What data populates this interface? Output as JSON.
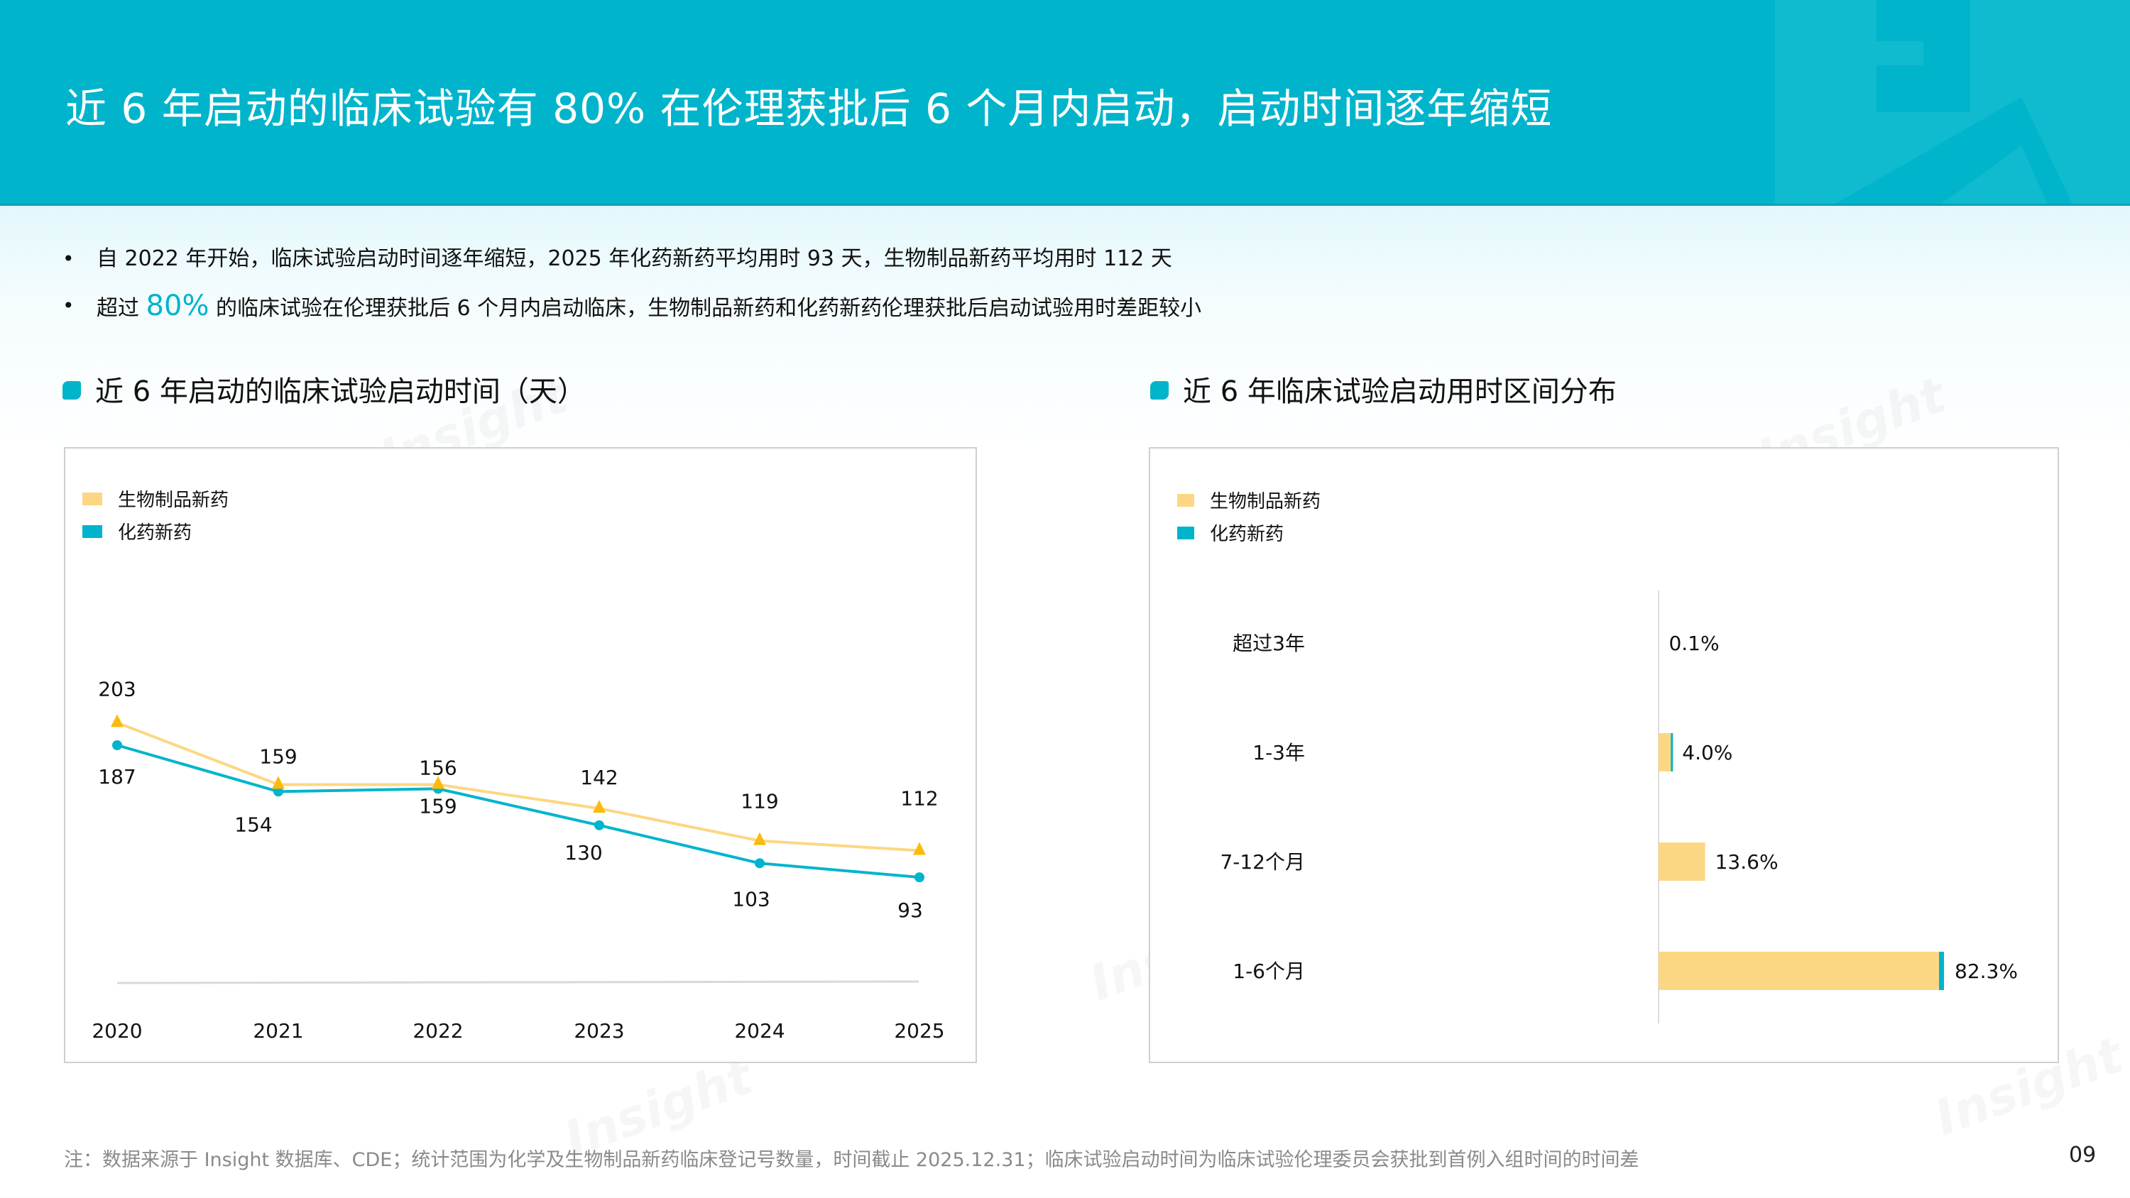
{
  "header": {
    "title": "近 6 年启动的临床试验有 80% 在伦理获批后 6 个月内启动，启动时间逐年缩短"
  },
  "bullets": [
    {
      "text": "自 2022 年开始，临床试验启动时间逐年缩短，2025 年化药新药平均用时 93 天，生物制品新药平均用时 112 天"
    },
    {
      "prefix": "超过 ",
      "highlight": "80%",
      "suffix": " 的临床试验在伦理获批后 6 个月内启动临床，生物制品新药和化药新药伦理获批后启动试验用时差距较小"
    }
  ],
  "left_panel": {
    "title": "近 6 年启动的临床试验启动时间（天）",
    "legend": [
      "生物制品新药",
      "化药新药"
    ]
  },
  "right_panel": {
    "title": "近 6 年临床试验启动用时区间分布",
    "legend": [
      "生物制品新药",
      "化药新药"
    ]
  },
  "colors": {
    "accent": "#00B4CC",
    "bio": "#FCD783",
    "bio_marker": "#FBBA0C",
    "chem": "#00B4CC"
  },
  "chart_data": [
    {
      "type": "line",
      "title": "近 6 年启动的临床试验启动时间（天）",
      "categories": [
        "2020",
        "2021",
        "2022",
        "2023",
        "2024",
        "2025"
      ],
      "series": [
        {
          "name": "生物制品新药",
          "values": [
            203,
            159,
            159,
            142,
            119,
            112
          ],
          "marker": "triangle",
          "color": "#FCD783"
        },
        {
          "name": "化药新药",
          "values": [
            187,
            154,
            156,
            130,
            103,
            93
          ],
          "marker": "circle",
          "color": "#00B4CC"
        }
      ],
      "xlabel": "",
      "ylabel": "天",
      "grid": false,
      "legend_position": "top-left"
    },
    {
      "type": "bar",
      "orientation": "horizontal",
      "stacked": true,
      "title": "近 6 年临床试验启动用时区间分布",
      "categories": [
        "超过3年",
        "1-3年",
        "7-12个月",
        "1-6个月"
      ],
      "values": [
        0.1,
        4.0,
        13.6,
        82.3
      ],
      "value_labels": [
        "0.1%",
        "4.0%",
        "13.6%",
        "82.3%"
      ],
      "series": [
        {
          "name": "生物制品新药",
          "color": "#FCD783"
        },
        {
          "name": "化药新药",
          "color": "#00B4CC"
        }
      ],
      "unit": "%",
      "grid": false,
      "legend_position": "top-left"
    }
  ],
  "footer": {
    "note": "注：数据来源于 Insight 数据库、CDE；统计范围为化学及生物制品新药临床登记号数量，时间截止 2025.12.31；临床试验启动时间为临床试验伦理委员会获批到首例入组时间的时间差",
    "page": "09"
  },
  "watermark": "Insight"
}
